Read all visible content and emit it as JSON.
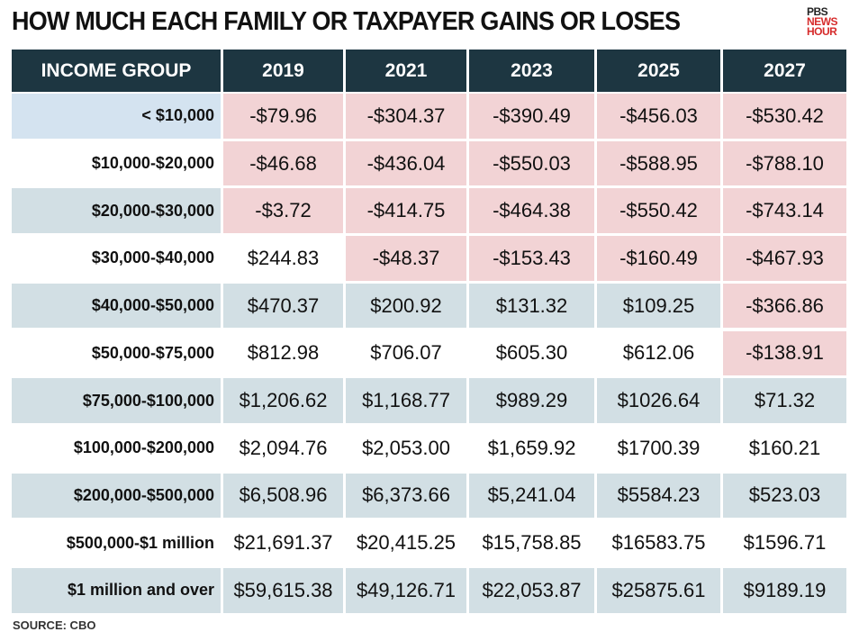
{
  "header": {
    "title": "HOW MUCH EACH FAMILY OR TAXPAYER GAINS OR LOSES",
    "logo": [
      "PBS",
      "NEWS",
      "HOUR"
    ]
  },
  "table": {
    "columns": [
      "INCOME GROUP",
      "2019",
      "2021",
      "2023",
      "2025",
      "2027"
    ],
    "rows": [
      [
        "< $10,000",
        "-$79.96",
        "-$304.37",
        "-$390.49",
        "-$456.03",
        "-$530.42"
      ],
      [
        "$10,000-$20,000",
        "-$46.68",
        "-$436.04",
        "-$550.03",
        "-$588.95",
        "-$788.10"
      ],
      [
        "$20,000-$30,000",
        "-$3.72",
        "-$414.75",
        "-$464.38",
        "-$550.42",
        "-$743.14"
      ],
      [
        "$30,000-$40,000",
        "$244.83",
        "-$48.37",
        "-$153.43",
        "-$160.49",
        "-$467.93"
      ],
      [
        "$40,000-$50,000",
        "$470.37",
        "$200.92",
        "$131.32",
        "$109.25",
        "-$366.86"
      ],
      [
        "$50,000-$75,000",
        "$812.98",
        "$706.07",
        "$605.30",
        "$612.06",
        "-$138.91"
      ],
      [
        "$75,000-$100,000",
        "$1,206.62",
        "$1,168.77",
        "$989.29",
        "$1026.64",
        "$71.32"
      ],
      [
        "$100,000-$200,000",
        "$2,094.76",
        "$2,053.00",
        "$1,659.92",
        "$1700.39",
        "$160.21"
      ],
      [
        "$200,000-$500,000",
        "$6,508.96",
        "$6,373.66",
        "$5,241.04",
        "$5584.23",
        "$523.03"
      ],
      [
        "$500,000-$1 million",
        "$21,691.37",
        "$20,415.25",
        "$15,758.85",
        "$16583.75",
        "$1596.71"
      ],
      [
        "$1 million and over",
        "$59,615.38",
        "$49,126.71",
        "$22,053.87",
        "$25875.61",
        "$9189.19"
      ]
    ]
  },
  "footer": {
    "source": "SOURCE: CBO"
  }
}
